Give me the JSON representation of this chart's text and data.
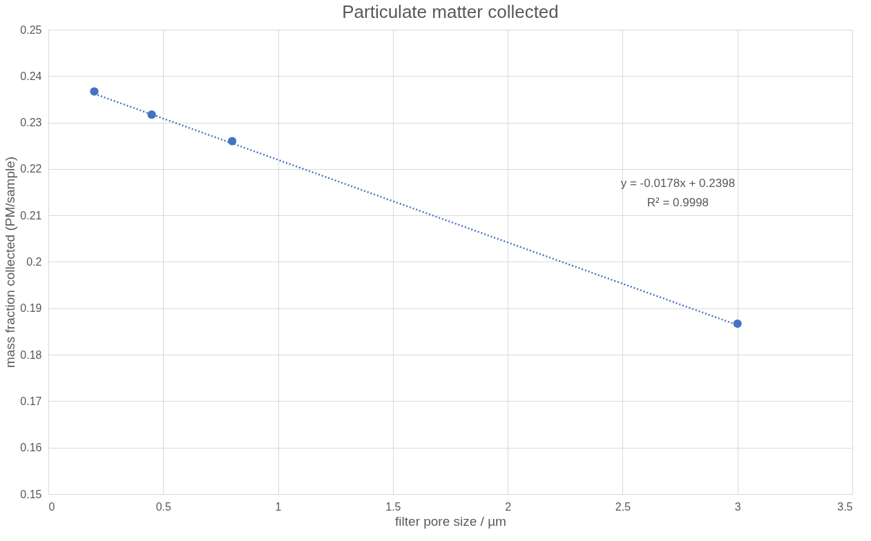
{
  "chart_data": {
    "type": "scatter",
    "title": "Particulate matter collected",
    "xlabel": "filter pore size / µm",
    "ylabel": "mass fraction collected (PM/sample)",
    "series": [
      {
        "color": "#4472c4",
        "x": [
          0.2,
          0.45,
          0.8,
          3
        ],
        "values": [
          0.2367,
          0.2317,
          0.226,
          0.1867
        ],
        "marker": "circle"
      },
      {
        "type": "line",
        "color": "#4472c4",
        "x": [
          0.2,
          3
        ],
        "values": [
          0.2362,
          0.1864
        ],
        "line_style": "dotted"
      }
    ],
    "xlim": [
      0,
      3.5
    ],
    "xticks": [
      0,
      0.5,
      1,
      1.5,
      2,
      2.5,
      3,
      3.5
    ],
    "ylim": [
      0.15,
      0.25
    ],
    "yticks": [
      0.15,
      0.16,
      0.17,
      0.18,
      0.19,
      0.2,
      0.21,
      0.22,
      0.23,
      0.24,
      0.25
    ],
    "annotations": [
      "y = -0.0178x + 0.2398",
      "R² = 0.9998"
    ],
    "grid": true
  }
}
